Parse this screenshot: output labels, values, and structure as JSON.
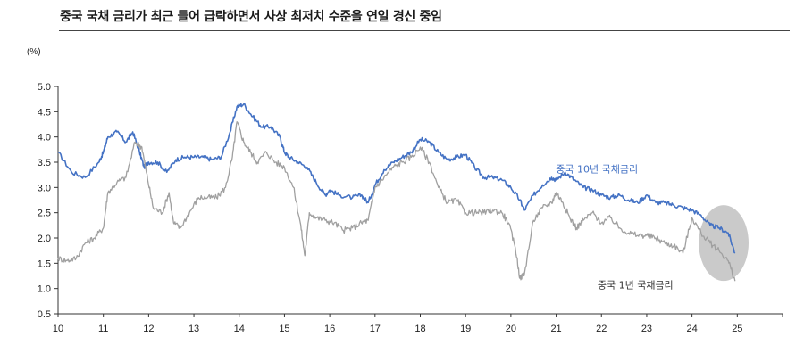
{
  "header": {
    "title": "중국 국채 금리가 최근 들어 급락하면서 사상 최저치 수준을 연일 경신 중임"
  },
  "chart_data": {
    "type": "line",
    "title": "중국 국채 금리가 최근 들어 급락하면서 사상 최저치 수준을 연일 경신 중임",
    "ylabel": "(%)",
    "xlabel": "",
    "ylim": [
      0.5,
      5.0
    ],
    "yticks": [
      "0.5",
      "1.0",
      "1.5",
      "2.0",
      "2.5",
      "3.0",
      "3.5",
      "4.0",
      "4.5",
      "5.0"
    ],
    "xlim": [
      10,
      26
    ],
    "xticks": [
      "10",
      "11",
      "12",
      "13",
      "14",
      "15",
      "16",
      "17",
      "18",
      "19",
      "20",
      "21",
      "22",
      "23",
      "24",
      "25"
    ],
    "grid": false,
    "series": [
      {
        "name": "중국 10년 국채금리",
        "color": "#4472c4",
        "x": [
          10.0,
          10.3,
          10.6,
          10.9,
          11.0,
          11.1,
          11.3,
          11.5,
          11.65,
          11.8,
          11.9,
          12.0,
          12.2,
          12.4,
          12.6,
          12.8,
          13.0,
          13.2,
          13.4,
          13.6,
          13.8,
          13.95,
          14.1,
          14.3,
          14.5,
          14.7,
          14.9,
          15.0,
          15.1,
          15.3,
          15.5,
          15.7,
          15.9,
          16.0,
          16.2,
          16.5,
          16.7,
          16.85,
          17.0,
          17.2,
          17.4,
          17.6,
          17.8,
          18.0,
          18.2,
          18.4,
          18.6,
          18.8,
          19.0,
          19.2,
          19.4,
          19.6,
          19.8,
          20.0,
          20.2,
          20.3,
          20.5,
          20.7,
          20.9,
          21.0,
          21.2,
          21.4,
          21.6,
          21.8,
          22.0,
          22.2,
          22.4,
          22.6,
          22.8,
          23.0,
          23.2,
          23.4,
          23.6,
          23.8,
          24.0,
          24.2,
          24.4,
          24.6,
          24.8,
          24.95
        ],
        "values": [
          3.7,
          3.3,
          3.2,
          3.5,
          3.7,
          4.0,
          4.1,
          3.9,
          4.1,
          3.7,
          3.4,
          3.5,
          3.5,
          3.3,
          3.55,
          3.6,
          3.6,
          3.6,
          3.55,
          3.6,
          4.1,
          4.6,
          4.65,
          4.4,
          4.2,
          4.2,
          4.0,
          3.7,
          3.6,
          3.5,
          3.4,
          3.1,
          2.85,
          2.95,
          2.85,
          2.8,
          2.85,
          2.7,
          3.05,
          3.35,
          3.5,
          3.6,
          3.7,
          3.95,
          3.9,
          3.7,
          3.55,
          3.6,
          3.65,
          3.4,
          3.2,
          3.2,
          3.15,
          3.0,
          2.75,
          2.55,
          2.85,
          3.05,
          3.2,
          3.15,
          3.3,
          3.15,
          3.0,
          2.95,
          2.85,
          2.8,
          2.85,
          2.75,
          2.7,
          2.85,
          2.7,
          2.7,
          2.65,
          2.6,
          2.55,
          2.45,
          2.25,
          2.2,
          2.1,
          1.7
        ]
      },
      {
        "name": "중국 1년 국채금리",
        "color": "#a0a0a0",
        "x": [
          10.0,
          10.2,
          10.4,
          10.6,
          10.8,
          11.0,
          11.1,
          11.3,
          11.5,
          11.7,
          11.85,
          11.95,
          12.1,
          12.3,
          12.45,
          12.55,
          12.7,
          12.9,
          13.1,
          13.3,
          13.5,
          13.7,
          13.85,
          13.95,
          14.1,
          14.25,
          14.4,
          14.6,
          14.8,
          15.0,
          15.2,
          15.35,
          15.45,
          15.55,
          15.7,
          15.9,
          16.1,
          16.3,
          16.5,
          16.7,
          16.85,
          17.0,
          17.2,
          17.4,
          17.6,
          17.8,
          18.0,
          18.2,
          18.4,
          18.6,
          18.8,
          19.0,
          19.2,
          19.4,
          19.6,
          19.8,
          19.95,
          20.1,
          20.2,
          20.3,
          20.5,
          20.7,
          20.9,
          21.0,
          21.15,
          21.3,
          21.45,
          21.6,
          21.8,
          22.0,
          22.2,
          22.4,
          22.6,
          22.8,
          23.0,
          23.2,
          23.4,
          23.6,
          23.8,
          24.0,
          24.2,
          24.4,
          24.6,
          24.8,
          24.95
        ],
        "values": [
          1.6,
          1.55,
          1.6,
          1.9,
          2.0,
          2.2,
          2.9,
          3.1,
          3.2,
          3.9,
          3.8,
          3.3,
          2.6,
          2.5,
          2.9,
          2.3,
          2.2,
          2.5,
          2.8,
          2.8,
          2.8,
          3.0,
          3.6,
          4.3,
          3.9,
          3.7,
          3.5,
          3.7,
          3.5,
          3.4,
          3.0,
          2.3,
          1.65,
          2.5,
          2.4,
          2.35,
          2.3,
          2.15,
          2.2,
          2.3,
          2.35,
          3.0,
          3.2,
          3.4,
          3.5,
          3.6,
          3.8,
          3.5,
          3.0,
          2.7,
          2.75,
          2.5,
          2.5,
          2.5,
          2.55,
          2.5,
          2.3,
          1.8,
          1.2,
          1.3,
          2.35,
          2.6,
          2.7,
          2.9,
          2.7,
          2.4,
          2.2,
          2.35,
          2.5,
          2.3,
          2.4,
          2.2,
          2.1,
          2.05,
          2.05,
          2.0,
          1.9,
          1.85,
          1.7,
          2.4,
          2.1,
          1.9,
          1.75,
          1.55,
          1.15
        ]
      }
    ],
    "annotation": {
      "label": "highlight-ellipse",
      "x_center": 24.7,
      "y_center": 1.9,
      "x_radius": 0.55,
      "y_radius": 0.75,
      "color": "#b8b8b8"
    }
  }
}
